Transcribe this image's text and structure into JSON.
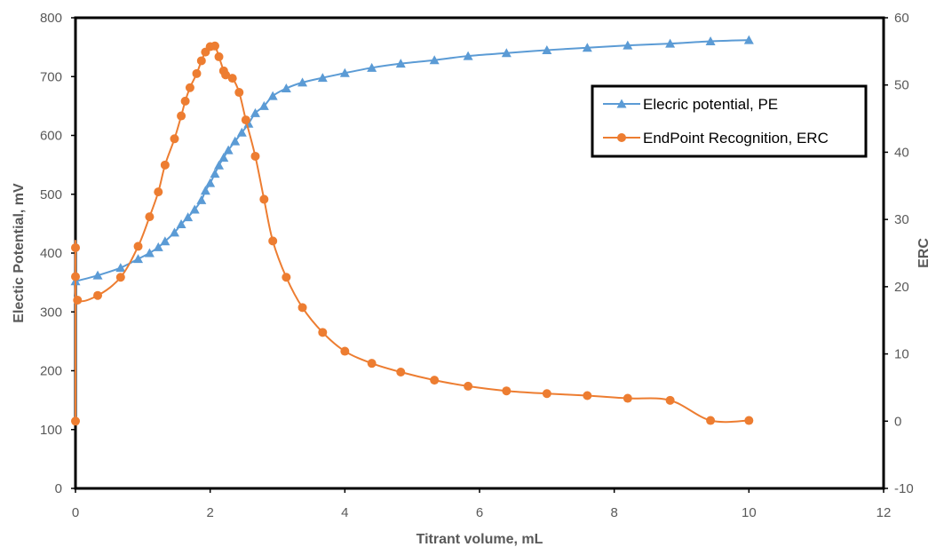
{
  "chart_data": {
    "type": "line",
    "title": "",
    "xlabel": "Titrant volume, mL",
    "ylabel": "Electic Potential, mV",
    "y2label": "ERC",
    "xlim": [
      0,
      12
    ],
    "ylim": [
      0,
      800
    ],
    "y2lim": [
      -10,
      60
    ],
    "x_ticks": [
      "0",
      "2",
      "4",
      "6",
      "8",
      "10",
      "12"
    ],
    "y_ticks": [
      "0",
      "100",
      "200",
      "300",
      "400",
      "500",
      "600",
      "700",
      "800"
    ],
    "y2_ticks": [
      "-10",
      "0",
      "10",
      "20",
      "30",
      "40",
      "50",
      "60"
    ],
    "grid": false,
    "legend_position": "right",
    "series": [
      {
        "name": "Elecric potential, PE",
        "axis": "left",
        "color": "#5B9BD5",
        "marker": "triangle",
        "x": [
          0,
          0.33,
          0.67,
          0.93,
          1.1,
          1.23,
          1.33,
          1.47,
          1.57,
          1.67,
          1.77,
          1.87,
          1.93,
          2.0,
          2.07,
          2.13,
          2.2,
          2.27,
          2.37,
          2.47,
          2.57,
          2.67,
          2.8,
          2.93,
          3.13,
          3.37,
          3.67,
          4.0,
          4.4,
          4.83,
          5.33,
          5.83,
          6.4,
          7.0,
          7.6,
          8.2,
          8.83,
          9.43,
          10.0
        ],
        "values": [
          352,
          362,
          375,
          390,
          400,
          410,
          420,
          435,
          449,
          461,
          474,
          490,
          506,
          519,
          535,
          549,
          562,
          575,
          590,
          605,
          620,
          638,
          650,
          667,
          680,
          690,
          698,
          706,
          715,
          722,
          728,
          735,
          740,
          745,
          749,
          753,
          756,
          760,
          762
        ]
      },
      {
        "name": "EndPoint Recognition, ERC",
        "axis": "right",
        "color": "#ED7D31",
        "marker": "circle",
        "x": [
          0.0,
          0.0,
          0.0,
          0.03,
          0.33,
          0.67,
          0.93,
          1.1,
          1.23,
          1.33,
          1.47,
          1.57,
          1.63,
          1.7,
          1.8,
          1.87,
          1.93,
          2.0,
          2.07,
          2.13,
          2.2,
          2.23,
          2.33,
          2.43,
          2.53,
          2.67,
          2.8,
          2.93,
          3.13,
          3.37,
          3.67,
          4.0,
          4.4,
          4.83,
          5.33,
          5.83,
          6.4,
          7.0,
          7.6,
          8.2,
          8.83,
          9.43,
          10.0
        ],
        "values": [
          0,
          25.8,
          21.5,
          18.0,
          18.7,
          21.4,
          26.0,
          30.4,
          34.1,
          38.1,
          42.0,
          45.4,
          47.6,
          49.6,
          51.7,
          53.6,
          54.9,
          55.7,
          55.8,
          54.2,
          52.1,
          51.5,
          51.0,
          48.9,
          44.8,
          39.4,
          33.0,
          26.8,
          21.4,
          16.9,
          13.2,
          10.4,
          8.6,
          7.3,
          6.1,
          5.2,
          4.5,
          4.1,
          3.8,
          3.4,
          3.1,
          0.1,
          0.1
        ]
      }
    ]
  }
}
